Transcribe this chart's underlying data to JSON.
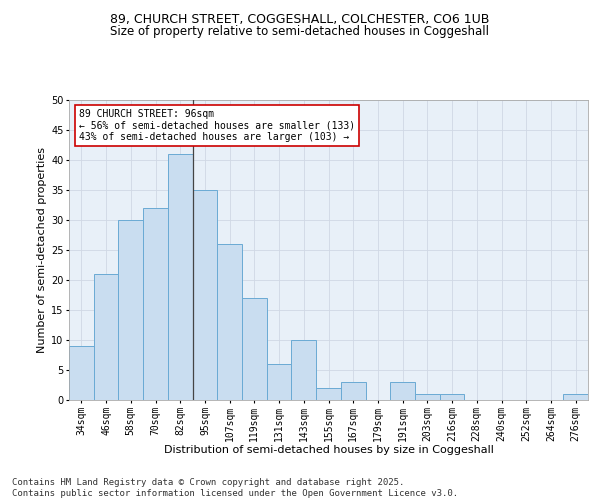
{
  "title_line1": "89, CHURCH STREET, COGGESHALL, COLCHESTER, CO6 1UB",
  "title_line2": "Size of property relative to semi-detached houses in Coggeshall",
  "xlabel": "Distribution of semi-detached houses by size in Coggeshall",
  "ylabel": "Number of semi-detached properties",
  "categories": [
    "34sqm",
    "46sqm",
    "58sqm",
    "70sqm",
    "82sqm",
    "95sqm",
    "107sqm",
    "119sqm",
    "131sqm",
    "143sqm",
    "155sqm",
    "167sqm",
    "179sqm",
    "191sqm",
    "203sqm",
    "216sqm",
    "228sqm",
    "240sqm",
    "252sqm",
    "264sqm",
    "276sqm"
  ],
  "values": [
    9,
    21,
    30,
    32,
    41,
    35,
    26,
    17,
    6,
    10,
    2,
    3,
    0,
    3,
    1,
    1,
    0,
    0,
    0,
    0,
    1
  ],
  "bar_color": "#c9ddf0",
  "bar_edge_color": "#6aaad4",
  "vline_x": 4.5,
  "vline_color": "#444444",
  "annotation_text": "89 CHURCH STREET: 96sqm\n← 56% of semi-detached houses are smaller (133)\n43% of semi-detached houses are larger (103) →",
  "annotation_box_color": "#ffffff",
  "annotation_box_edge": "#cc0000",
  "ylim": [
    0,
    50
  ],
  "yticks": [
    0,
    5,
    10,
    15,
    20,
    25,
    30,
    35,
    40,
    45,
    50
  ],
  "grid_color": "#d0d8e4",
  "background_color": "#e8f0f8",
  "footer_text": "Contains HM Land Registry data © Crown copyright and database right 2025.\nContains public sector information licensed under the Open Government Licence v3.0.",
  "title_fontsize": 9,
  "subtitle_fontsize": 8.5,
  "axis_label_fontsize": 8,
  "tick_fontsize": 7,
  "annotation_fontsize": 7,
  "footer_fontsize": 6.5
}
